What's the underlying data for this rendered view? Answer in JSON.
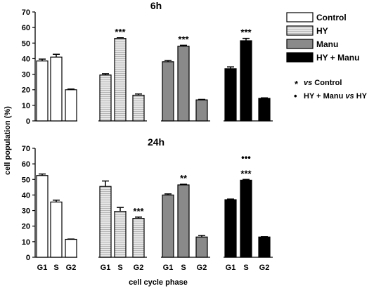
{
  "chart_data": {
    "type": "bar",
    "xlabel": "cell cycle phase",
    "ylabel": "cell population (%)",
    "ylim": [
      0,
      70
    ],
    "yticks": [
      0,
      10,
      20,
      30,
      40,
      50,
      60,
      70
    ],
    "phases": [
      "G1",
      "S",
      "G2"
    ],
    "groups": [
      {
        "name": "Control",
        "color": "#ffffff",
        "pattern": "none"
      },
      {
        "name": "HY",
        "color": "#dcdcdc",
        "pattern": "stripes"
      },
      {
        "name": "Manu",
        "color": "#8a8a8a",
        "pattern": "none"
      },
      {
        "name": "HY + Manu",
        "color": "#000000",
        "pattern": "none"
      }
    ],
    "panels": [
      {
        "title": "6h",
        "series": [
          {
            "name": "Control",
            "values": [
              38.5,
              41,
              20
            ],
            "errors": [
              1.2,
              1.8,
              0.5
            ]
          },
          {
            "name": "HY",
            "values": [
              29.5,
              53,
              16.5
            ],
            "errors": [
              0.8,
              0.4,
              0.8
            ]
          },
          {
            "name": "Manu",
            "values": [
              38,
              48,
              13.5
            ],
            "errors": [
              0.8,
              0.6,
              0.3
            ]
          },
          {
            "name": "HY + Manu",
            "values": [
              33.5,
              51.5,
              14.5
            ],
            "errors": [
              1.2,
              1.5,
              0.3
            ]
          }
        ],
        "annotations": [
          {
            "group": "HY",
            "phase": "S",
            "text": "***"
          },
          {
            "group": "Manu",
            "phase": "S",
            "text": "***"
          },
          {
            "group": "HY + Manu",
            "phase": "S",
            "text": "***"
          }
        ]
      },
      {
        "title": "24h",
        "series": [
          {
            "name": "Control",
            "values": [
              52.5,
              35.5,
              11.5
            ],
            "errors": [
              1.0,
              1.2,
              0.2
            ]
          },
          {
            "name": "HY",
            "values": [
              45.5,
              29.5,
              25
            ],
            "errors": [
              3.5,
              2.5,
              0.8
            ]
          },
          {
            "name": "Manu",
            "values": [
              40,
              46.5,
              13
            ],
            "errors": [
              0.7,
              0.4,
              1.0
            ]
          },
          {
            "name": "HY + Manu",
            "values": [
              37,
              49.5,
              13
            ],
            "errors": [
              0.4,
              0.5,
              0.2
            ]
          }
        ],
        "annotations": [
          {
            "group": "HY",
            "phase": "G2",
            "text": "***"
          },
          {
            "group": "Manu",
            "phase": "S",
            "text": "**"
          },
          {
            "group": "HY + Manu",
            "phase": "S",
            "text": "***"
          },
          {
            "group": "HY + Manu",
            "phase": "S",
            "text": "•••"
          }
        ]
      }
    ],
    "legend": {
      "placement": "top-right",
      "entries": [
        "Control",
        "HY",
        "Manu",
        "HY + Manu"
      ],
      "notes": [
        {
          "symbol": "*",
          "text": "vs Control"
        },
        {
          "symbol": "•",
          "text": "HY + Manu vs HY"
        }
      ]
    }
  }
}
